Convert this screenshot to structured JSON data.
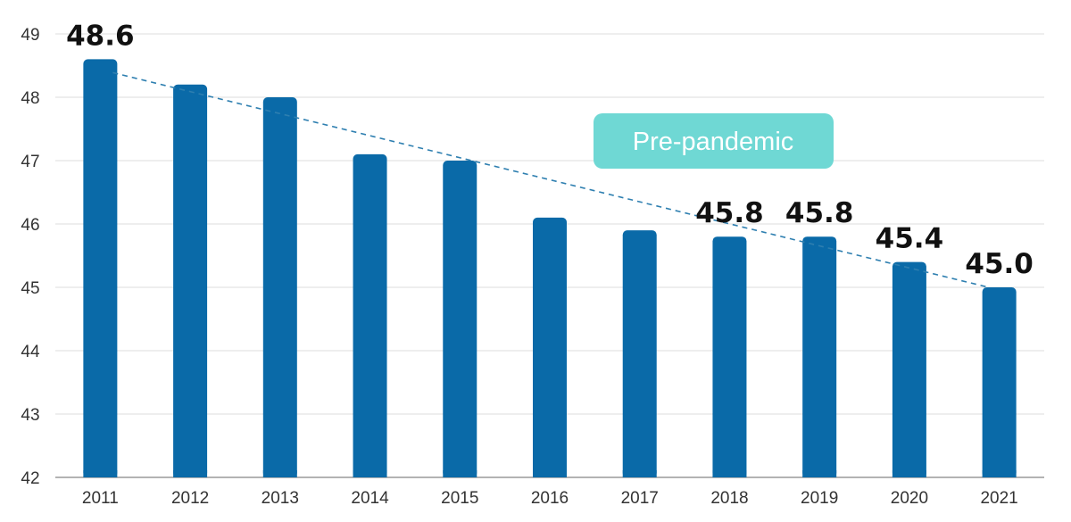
{
  "chart_data": {
    "type": "bar",
    "title": "",
    "xlabel": "",
    "ylabel": "",
    "categories": [
      "2011",
      "2012",
      "2013",
      "2014",
      "2015",
      "2016",
      "2017",
      "2018",
      "2019",
      "2020",
      "2021"
    ],
    "values": [
      48.6,
      48.2,
      48.0,
      47.1,
      47.0,
      46.1,
      45.9,
      45.8,
      45.8,
      45.4,
      45.0
    ],
    "data_labels": [
      "48.6",
      "",
      "",
      "",
      "",
      "",
      "",
      "45.8",
      "45.8",
      "45.4",
      "45.0"
    ],
    "ylim": [
      42,
      49
    ],
    "yticks": [
      "42",
      "43",
      "44",
      "45",
      "46",
      "47",
      "48",
      "49"
    ],
    "grid": true,
    "bar_color": "#0a6aa8",
    "trendline": {
      "style": "dashed",
      "color": "#2e7fb0",
      "from": {
        "x": "2011",
        "y": 48.6
      },
      "to": {
        "x": "2021",
        "y": 45.0
      }
    },
    "annotation": {
      "text": "Pre-pandemic",
      "background": "#6fd8d4",
      "text_color": "#ffffff"
    }
  }
}
